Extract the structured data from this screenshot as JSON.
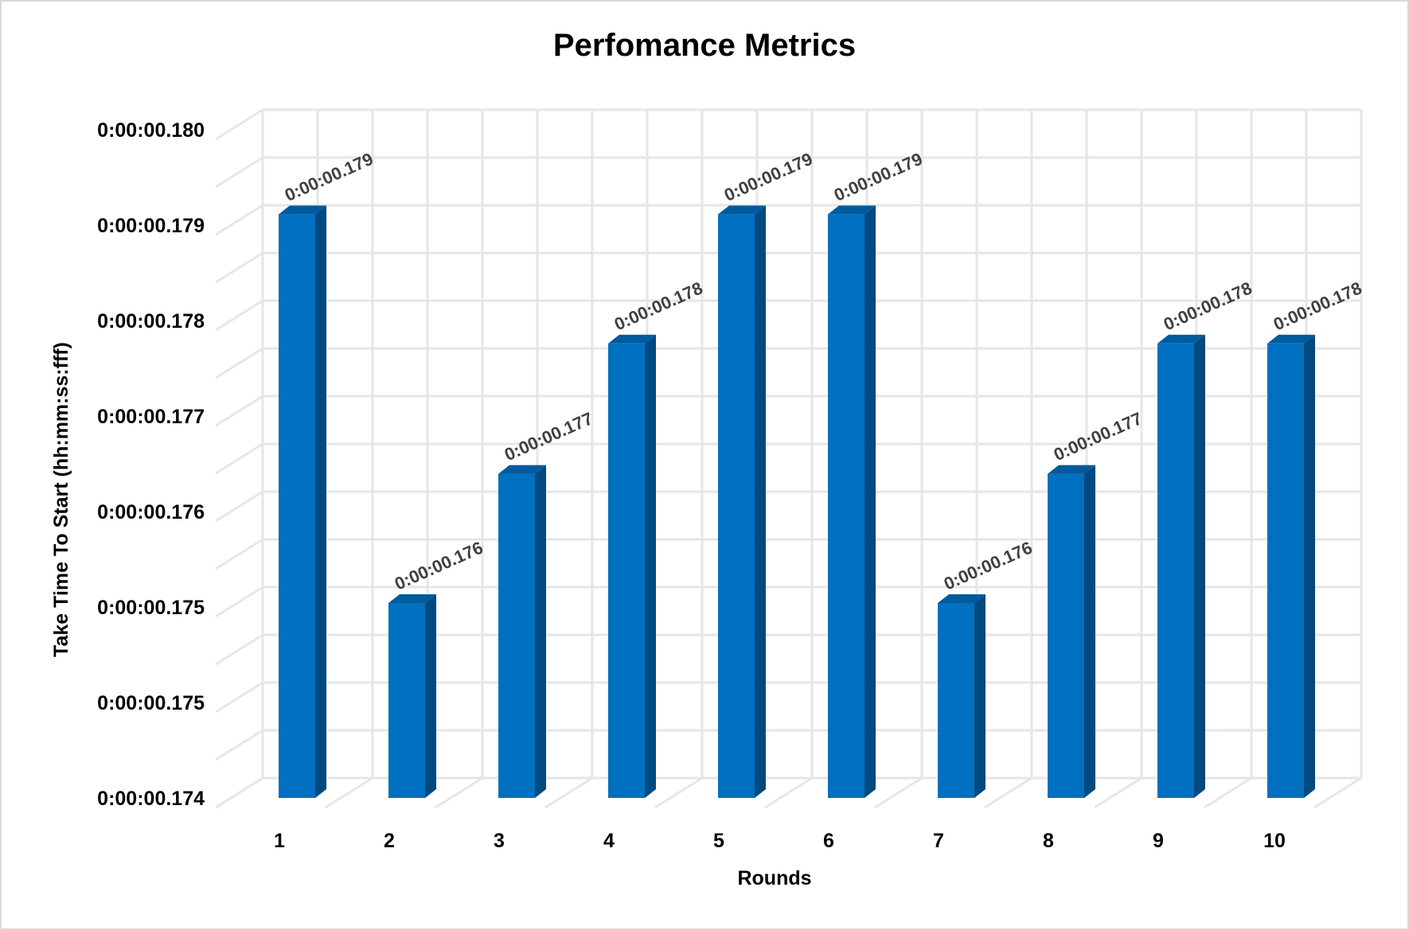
{
  "chart_data": {
    "type": "bar",
    "title": "Perfomance Metrics",
    "xlabel": "Rounds",
    "ylabel": "Take Time To Start (hh:mm:ss:fff)",
    "categories": [
      "1",
      "2",
      "3",
      "4",
      "5",
      "6",
      "7",
      "8",
      "9",
      "10"
    ],
    "values": [
      0.17924,
      0.17575,
      0.17691,
      0.17808,
      0.17924,
      0.17924,
      0.17575,
      0.17691,
      0.17808,
      0.17808
    ],
    "data_labels": [
      "0:00:00.179",
      "0:00:00.176",
      "0:00:00.177",
      "0:00:00.178",
      "0:00:00.179",
      "0:00:00.179",
      "0:00:00.176",
      "0:00:00.177",
      "0:00:00.178",
      "0:00:00.178"
    ],
    "y_tick_labels": [
      "0:00:00.174",
      "0:00:00.175",
      "0:00:00.175",
      "0:00:00.176",
      "0:00:00.177",
      "0:00:00.178",
      "0:00:00.179",
      "0:00:00.180"
    ],
    "ylim": [
      0.174,
      0.1804
    ],
    "grid": true,
    "legend": "none",
    "style": "3d-column",
    "colors": {
      "bar_front": "#0070c0",
      "bar_side": "#004a80",
      "bar_top": "#005a9e"
    }
  }
}
